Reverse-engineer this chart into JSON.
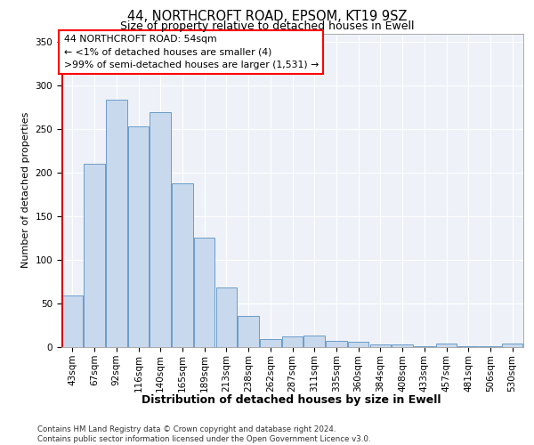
{
  "title_line1": "44, NORTHCROFT ROAD, EPSOM, KT19 9SZ",
  "title_line2": "Size of property relative to detached houses in Ewell",
  "xlabel": "Distribution of detached houses by size in Ewell",
  "ylabel": "Number of detached properties",
  "footer": "Contains HM Land Registry data © Crown copyright and database right 2024.\nContains public sector information licensed under the Open Government Licence v3.0.",
  "annotation_line1": "44 NORTHCROFT ROAD: 54sqm",
  "annotation_line2": "← <1% of detached houses are smaller (4)",
  "annotation_line3": ">99% of semi-detached houses are larger (1,531) →",
  "property_size_sqm": 54,
  "bar_color": "#c9d9ed",
  "bar_edge_color": "#6a9cc9",
  "marker_color": "#cc0000",
  "categories": [
    "43sqm",
    "67sqm",
    "92sqm",
    "116sqm",
    "140sqm",
    "165sqm",
    "189sqm",
    "213sqm",
    "238sqm",
    "262sqm",
    "287sqm",
    "311sqm",
    "335sqm",
    "360sqm",
    "384sqm",
    "408sqm",
    "433sqm",
    "457sqm",
    "481sqm",
    "506sqm",
    "530sqm"
  ],
  "values": [
    59,
    210,
    284,
    253,
    270,
    188,
    126,
    68,
    36,
    9,
    12,
    13,
    7,
    6,
    3,
    3,
    1,
    4,
    1,
    1,
    4
  ],
  "ylim": [
    0,
    360
  ],
  "yticks": [
    0,
    50,
    100,
    150,
    200,
    250,
    300,
    350
  ],
  "bg_color": "#eef2f8",
  "plot_bg_color": "#eef2f8",
  "title_fontsize": 10.5,
  "subtitle_fontsize": 9,
  "ylabel_fontsize": 8,
  "xlabel_fontsize": 9,
  "tick_fontsize": 7.5,
  "annotation_fontsize": 7.8,
  "footer_fontsize": 6.2
}
